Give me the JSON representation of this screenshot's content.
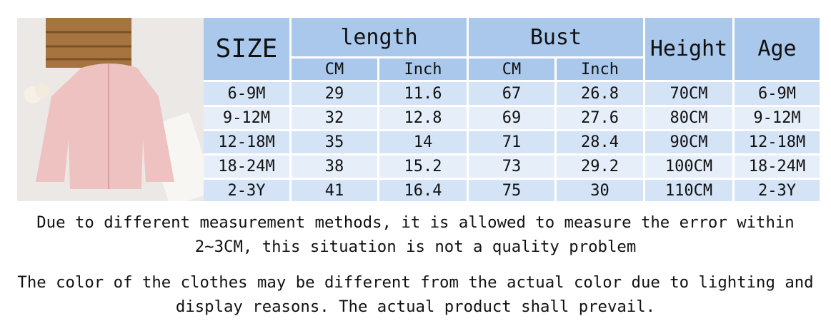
{
  "table": {
    "header": {
      "size": "SIZE",
      "length": "length",
      "bust": "Bust",
      "height": "Height",
      "age": "Age",
      "length_cm": "CM",
      "length_inch": "Inch",
      "bust_cm": "CM",
      "bust_inch": "Inch"
    },
    "rows": [
      [
        "6-9M",
        "29",
        "11.6",
        "67",
        "26.8",
        "70CM",
        "6-9M"
      ],
      [
        "9-12M",
        "32",
        "12.8",
        "69",
        "27.6",
        "80CM",
        "9-12M"
      ],
      [
        "12-18M",
        "35",
        "14",
        "71",
        "28.4",
        "90CM",
        "12-18M"
      ],
      [
        "18-24M",
        "38",
        "15.2",
        "73",
        "29.2",
        "100CM",
        "18-24M"
      ],
      [
        "2-3Y",
        "41",
        "16.4",
        "75",
        "30",
        "110CM",
        "2-3Y"
      ]
    ]
  },
  "notes": [
    "Due to different measurement methods, it is allowed to measure the error within 2~3CM, this situation is not a quality problem",
    "The color of the clothes may be different from the actual color due to lighting and display reasons. The actual product shall prevail."
  ]
}
